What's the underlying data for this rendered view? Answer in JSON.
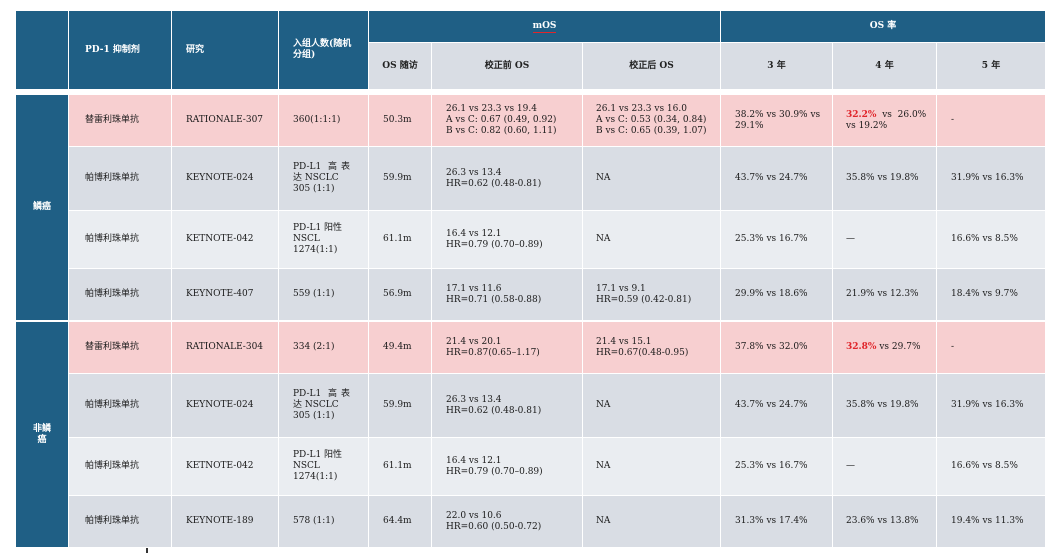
{
  "header": {
    "col_inhibitor": "PD-1 抑制剂",
    "col_study": "研究",
    "col_enroll": "入组人数(随机分组)",
    "group_mos": "mOS",
    "group_osrate": "OS 率",
    "sub_followup": "OS 随访",
    "sub_before": "校正前 OS",
    "sub_after": "校正后 OS",
    "sub_3y": "3 年",
    "sub_4y": "4 年",
    "sub_5y": "5 年"
  },
  "groups": [
    {
      "label": "鳞癌"
    },
    {
      "label": "非鳞\n癌"
    }
  ],
  "rows": [
    {
      "drug": "替雷利珠单抗",
      "study": "RATIONALE-307",
      "enroll": "360(1:1:1)",
      "followup": "50.3m",
      "before": "26.1 vs 23.3 vs 19.4\nA vs C: 0.67 (0.49, 0.92)\nB vs C: 0.82 (0.60, 1.11)",
      "after": "26.1 vs 23.3 vs 16.0\nA vs C: 0.53 (0.34, 0.84)\nB vs C: 0.65 (0.39, 1.07)",
      "y3": "38.2% vs 30.9% vs 29.1%",
      "y4_hl": "32.2%",
      "y4": "  vs  26.0% vs 19.2%",
      "y5": "-"
    },
    {
      "drug": "帕博利珠单抗",
      "study": "KEYNOTE-024",
      "enroll": "PD-L1 高表达 NSCLC\n305 (1:1)",
      "followup": "59.9m",
      "before": "26.3 vs 13.4\nHR=0.62 (0.48-0.81)",
      "after": "NA",
      "y3": "43.7% vs 24.7%",
      "y4_hl": "",
      "y4": "35.8% vs 19.8%",
      "y5": "31.9% vs 16.3%"
    },
    {
      "drug": "帕博利珠单抗",
      "study": "KETNOTE-042",
      "enroll": "PD-L1 阳性\nNSCL\n1274(1:1)",
      "followup": "61.1m",
      "before": "16.4 vs 12.1\nHR=0.79 (0.70–0.89)",
      "after": "NA",
      "y3": "25.3% vs 16.7%",
      "y4_hl": "",
      "y4": "—",
      "y5": "16.6% vs 8.5%"
    },
    {
      "drug": "帕博利珠单抗",
      "study": "KEYNOTE-407",
      "enroll": "559 (1:1)",
      "followup": "56.9m",
      "before": "17.1 vs 11.6\nHR=0.71 (0.58-0.88)",
      "after": "17.1 vs 9.1\nHR=0.59 (0.42-0.81)",
      "y3": "29.9% vs 18.6%",
      "y4_hl": "",
      "y4": "21.9% vs 12.3%",
      "y5": "18.4% vs 9.7%"
    },
    {
      "drug": "替雷利珠单抗",
      "study": "RATIONALE-304",
      "enroll": "334 (2:1)",
      "followup": "49.4m",
      "before": "21.4 vs 20.1\nHR=0.87(0.65–1.17)",
      "after": "21.4 vs 15.1\nHR=0.67(0.48-0.95)",
      "y3": "37.8% vs 32.0%",
      "y4_hl": "32.8%",
      "y4": " vs 29.7%",
      "y5": "-"
    },
    {
      "drug": "帕博利珠单抗",
      "study": "KEYNOTE-024",
      "enroll": "PD-L1 高表达 NSCLC\n305 (1:1)",
      "followup": "59.9m",
      "before": "26.3 vs 13.4\nHR=0.62 (0.48-0.81)",
      "after": "NA",
      "y3": "43.7% vs 24.7%",
      "y4_hl": "",
      "y4": "35.8% vs 19.8%",
      "y5": "31.9% vs 16.3%"
    },
    {
      "drug": "帕博利珠单抗",
      "study": "KETNOTE-042",
      "enroll": "PD-L1 阳性\nNSCL\n1274(1:1)",
      "followup": "61.1m",
      "before": "16.4 vs 12.1\nHR=0.79 (0.70–0.89)",
      "after": "NA",
      "y3": "25.3% vs 16.7%",
      "y4_hl": "",
      "y4": "—",
      "y5": "16.6% vs 8.5%"
    },
    {
      "drug": "帕博利珠单抗",
      "study": "KEYNOTE-189",
      "enroll": "578 (1:1)",
      "followup": "64.4m",
      "before": "22.0 vs 10.6\nHR=0.60 (0.50-0.72)",
      "after": "NA",
      "y3": "31.3% vs 17.4%",
      "y4_hl": "",
      "y4": "23.6% vs 13.8%",
      "y5": "19.4% vs 11.3%"
    }
  ],
  "colors": {
    "header": "#1f5f85",
    "pink": "#f7cfd0",
    "gray": "#d9dde4",
    "light": "#eaedf1",
    "highlight": "#e0262b"
  }
}
